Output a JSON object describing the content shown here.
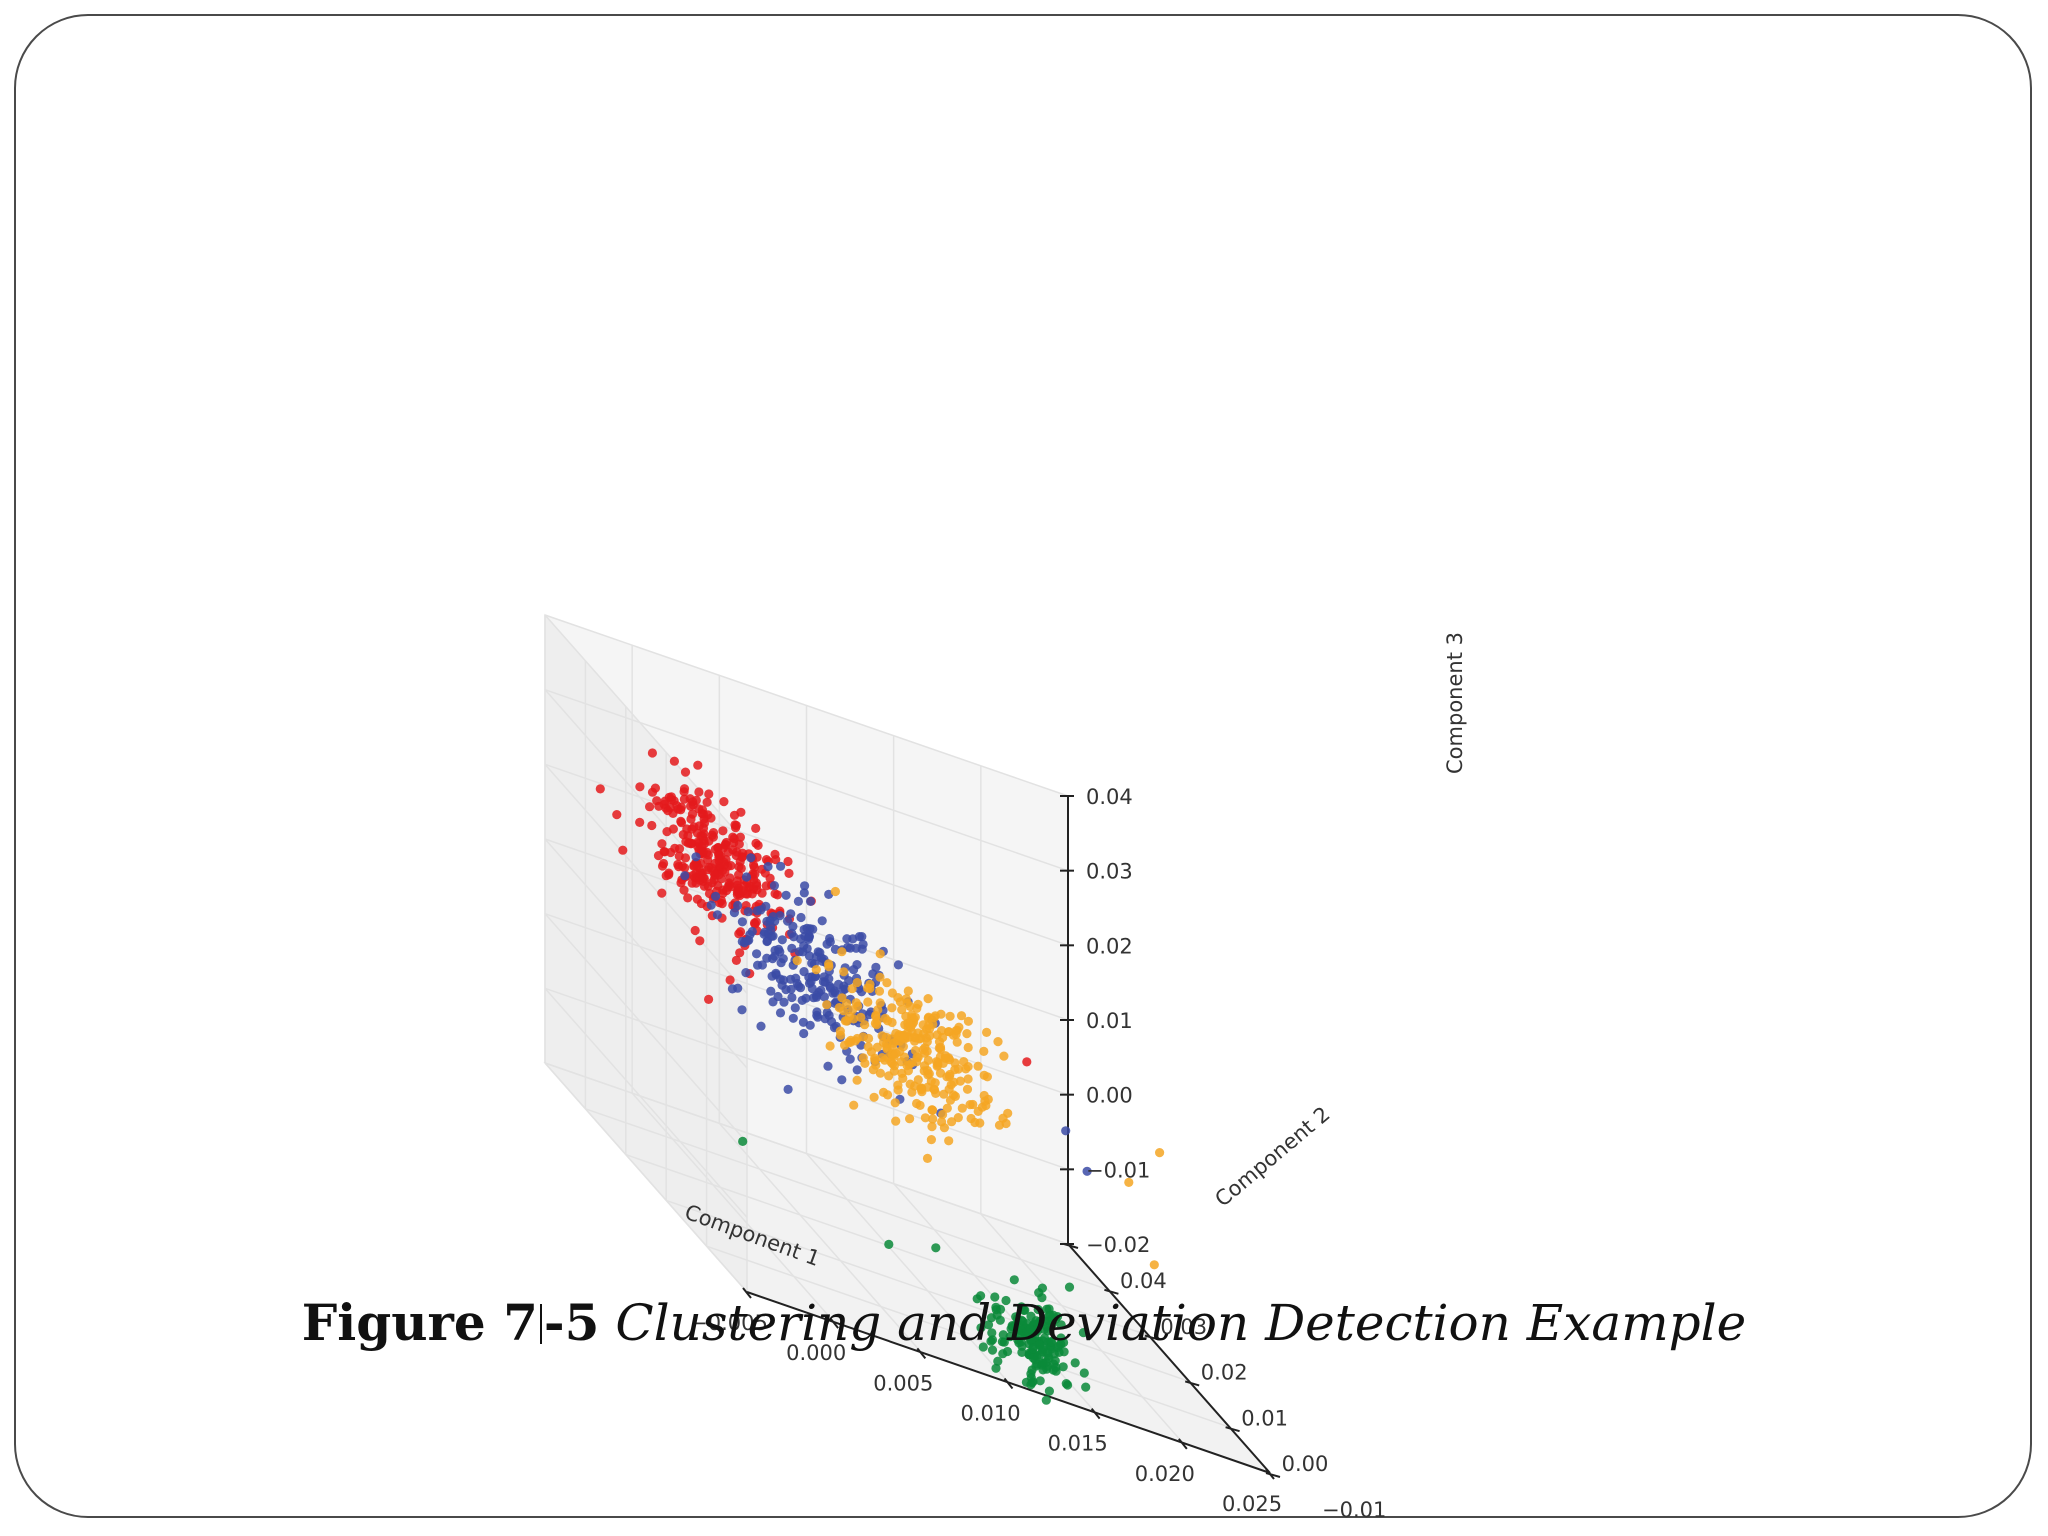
{
  "caption": {
    "figure_number": "Figure 7",
    "figure_number_suffix": "-5",
    "title": "Clustering and Deviation Detection Example"
  },
  "chart_data": {
    "type": "scatter",
    "projection": "3d",
    "title": "",
    "xlabel": "Component 1",
    "ylabel": "Component 2",
    "zlabel": "Component 3",
    "xlim": [
      -0.005,
      0.025
    ],
    "ylim": [
      -0.01,
      0.04
    ],
    "zlim": [
      -0.02,
      0.04
    ],
    "x_ticks": [
      "−0.005",
      "0.000",
      "0.005",
      "0.010",
      "0.015",
      "0.020",
      "0.025"
    ],
    "y_ticks": [
      "−0.01",
      "0.00",
      "0.01",
      "0.02",
      "0.03",
      "0.04"
    ],
    "z_ticks": [
      "−0.02",
      "−0.01",
      "0.00",
      "0.01",
      "0.02",
      "0.03",
      "0.04"
    ],
    "grid": true,
    "legend": "none",
    "series": [
      {
        "color": "#e41a1c",
        "clusters": [
          {
            "center": [
              0.0025,
              0.03,
              0.019
            ],
            "spread": [
              0.0016,
              0.006,
              0.0035
            ],
            "count": 300
          }
        ]
      },
      {
        "color": "#3b4ba6",
        "clusters": [
          {
            "center": [
              0.0075,
              0.027,
              0.01
            ],
            "spread": [
              0.0022,
              0.006,
              0.004
            ],
            "count": 240
          }
        ]
      },
      {
        "color": "#f5a623",
        "clusters": [
          {
            "center": [
              0.0125,
              0.024,
              0.006
            ],
            "spread": [
              0.0022,
              0.005,
              0.004
            ],
            "count": 280
          }
        ]
      },
      {
        "color": "#0a8a3a",
        "clusters": [
          {
            "center": [
              0.015,
              0.0053,
              -0.0195
            ],
            "spread": [
              0.0012,
              0.0016,
              0.0025
            ],
            "count": 170
          }
        ]
      }
    ],
    "outliers": [
      {
        "color": "#0a8a3a",
        "x": -0.002,
        "y": 0.004,
        "z": -0.006
      },
      {
        "color": "#0a8a3a",
        "x": 0.008,
        "y": 0.011,
        "z": -0.016
      },
      {
        "color": "#0a8a3a",
        "x": 0.01,
        "y": 0.008,
        "z": -0.013
      },
      {
        "color": "#3b4ba6",
        "x": 0.02,
        "y": 0.019,
        "z": 0.004
      },
      {
        "color": "#3b4ba6",
        "x": 0.021,
        "y": 0.018,
        "z": 0.0
      },
      {
        "color": "#e41a1c",
        "x": 0.018,
        "y": 0.02,
        "z": 0.011
      },
      {
        "color": "#f5a623",
        "x": 0.024,
        "y": 0.013,
        "z": 0.008
      },
      {
        "color": "#f5a623",
        "x": 0.022,
        "y": 0.012,
        "z": 0.003
      },
      {
        "color": "#f5a623",
        "x": 0.023,
        "y": 0.01,
        "z": -0.006
      }
    ]
  }
}
